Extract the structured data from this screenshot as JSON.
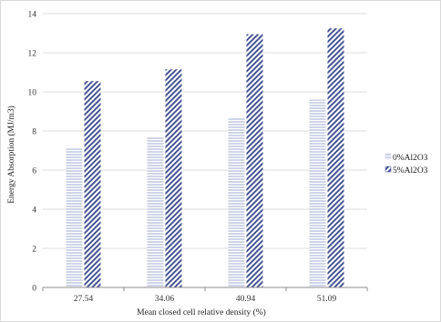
{
  "chart_data": {
    "type": "bar",
    "title": "",
    "xlabel": "Mean closed cell relative density (%)",
    "ylabel": "Energy  Absorption (MJ/m3)",
    "categories": [
      "27.54",
      "34.06",
      "40.94",
      "51.09"
    ],
    "ylim": [
      0,
      14
    ],
    "yticks": [
      0,
      2,
      4,
      6,
      8,
      10,
      12,
      14
    ],
    "grid": "horizontal",
    "legend_position": "right",
    "series": [
      {
        "name": "0%Al2O3",
        "values": [
          7.1,
          7.7,
          8.65,
          9.6
        ],
        "color": "#b8c4e0",
        "pattern": "horizontal-stripes"
      },
      {
        "name": "5%Al2O3",
        "values": [
          10.55,
          11.15,
          12.95,
          13.25
        ],
        "color": "#3d4f8c",
        "pattern": "diagonal-stripes"
      }
    ]
  }
}
